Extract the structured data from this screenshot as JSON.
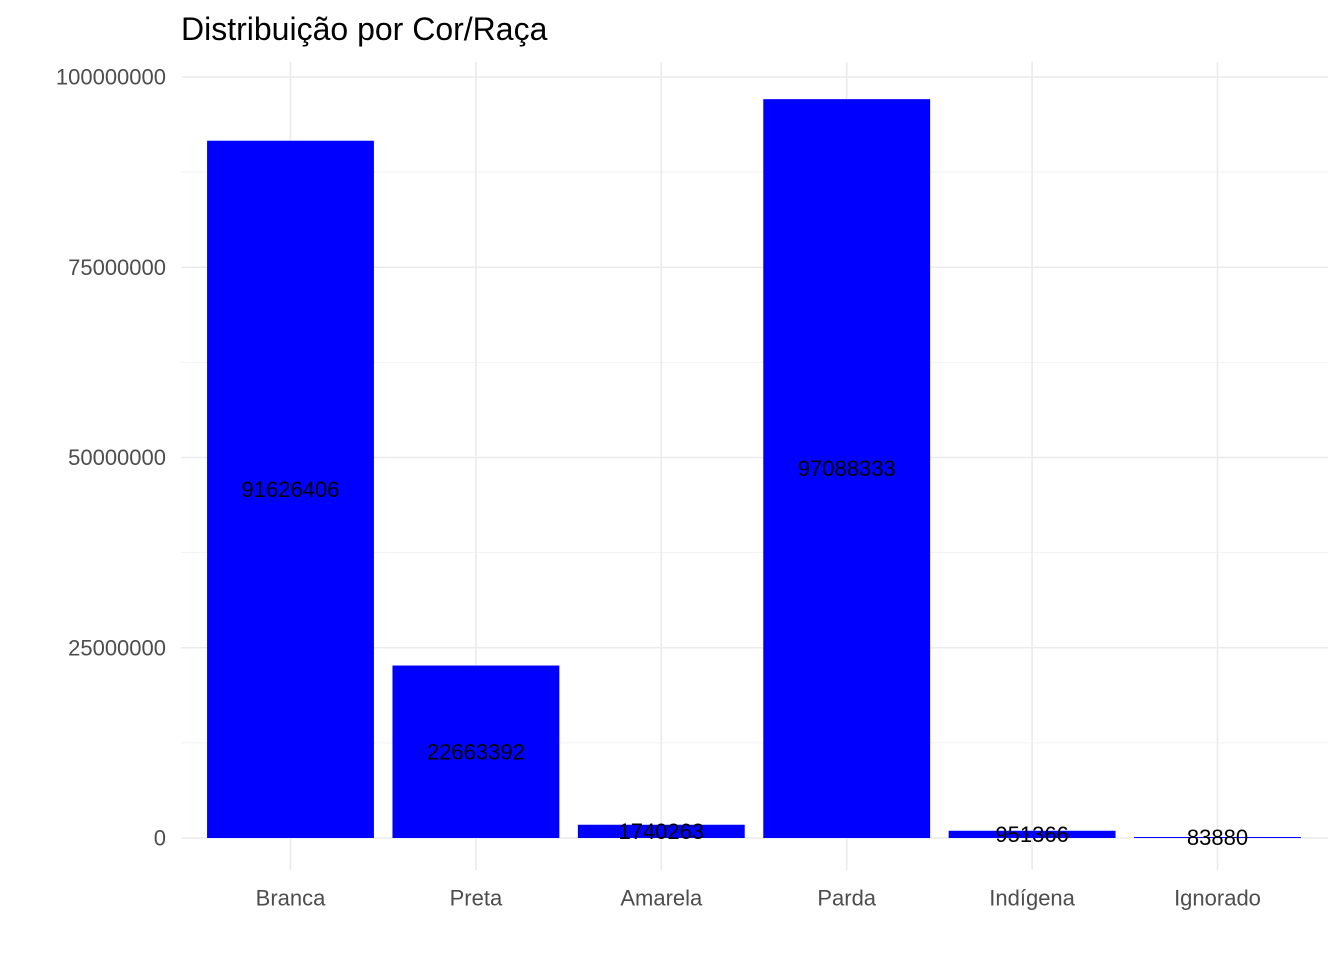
{
  "chart_data": {
    "type": "bar",
    "title": "Distribuição por Cor/Raça",
    "xlabel": "",
    "ylabel": "",
    "categories": [
      "Branca",
      "Preta",
      "Amarela",
      "Parda",
      "Indígena",
      "Ignorado"
    ],
    "values": [
      91626406,
      22663392,
      1740263,
      97088333,
      951366,
      83880
    ],
    "data_labels": [
      "91626406",
      "22663392",
      "1740263",
      "97088333",
      "951366",
      "83880"
    ],
    "ylim": [
      0,
      100000000
    ],
    "y_ticks": [
      0,
      25000000,
      50000000,
      75000000,
      100000000
    ],
    "y_tick_labels": [
      "0",
      "25000000",
      "50000000",
      "75000000",
      "100000000"
    ],
    "grid": true,
    "legend": "none",
    "bar_color": "#0000FF"
  }
}
